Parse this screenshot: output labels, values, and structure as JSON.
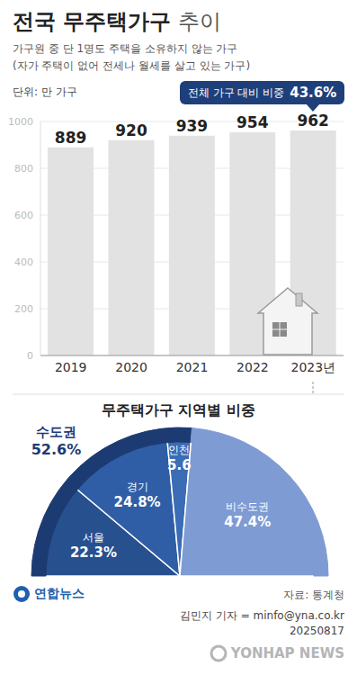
{
  "title": "전국 무주택가구 추이",
  "subtitle": [
    "가구원 중 단 1명도 주택을 소유하지 않는 가구",
    "(자가 주택이 없어 전세나 월세를 살고 있는 가구)"
  ],
  "source": "자료: 통계청",
  "logo": "연합뉴스",
  "credit": "김민지 기자 = minfo@yna.co.kr",
  "date": "20250817",
  "watermark": "YONHAP NEWS",
  "chart_data": [
    {
      "type": "bar",
      "y_label": "단위: 만 가구",
      "annotation": [
        "전체 가구 대비 비중",
        "43.6%"
      ],
      "categories": [
        "2019",
        "2020",
        "2021",
        "2022",
        "2023년"
      ],
      "values": [
        889,
        920,
        939,
        954,
        962
      ],
      "color": "#e2e2e2",
      "ylim": [
        0,
        1000
      ],
      "yticks": [
        0,
        200,
        400,
        600,
        800,
        1000
      ],
      "grid": true,
      "data_labels": true
    },
    {
      "type": "pie",
      "title": "무주택가구 지역별 비중",
      "data_labels": true,
      "series": [
        {
          "categories": [
            "수도권",
            null
          ],
          "values": [
            52.6,
            47.4
          ],
          "value_labels": [
            "52.6%",
            null
          ],
          "colors": [
            "#1d3b73",
            "#7e9bd3"
          ]
        },
        {
          "categories": [
            "서울",
            "경기",
            "인천",
            "비수도권"
          ],
          "values": [
            22.3,
            24.8,
            5.6,
            47.4
          ],
          "value_labels": [
            "22.3%",
            "24.8%",
            "5.6",
            "47.4%"
          ],
          "colors": [
            "#27508f",
            "#2f5ea6",
            "#3b6cb6",
            "#7e9bd3"
          ]
        }
      ]
    }
  ]
}
